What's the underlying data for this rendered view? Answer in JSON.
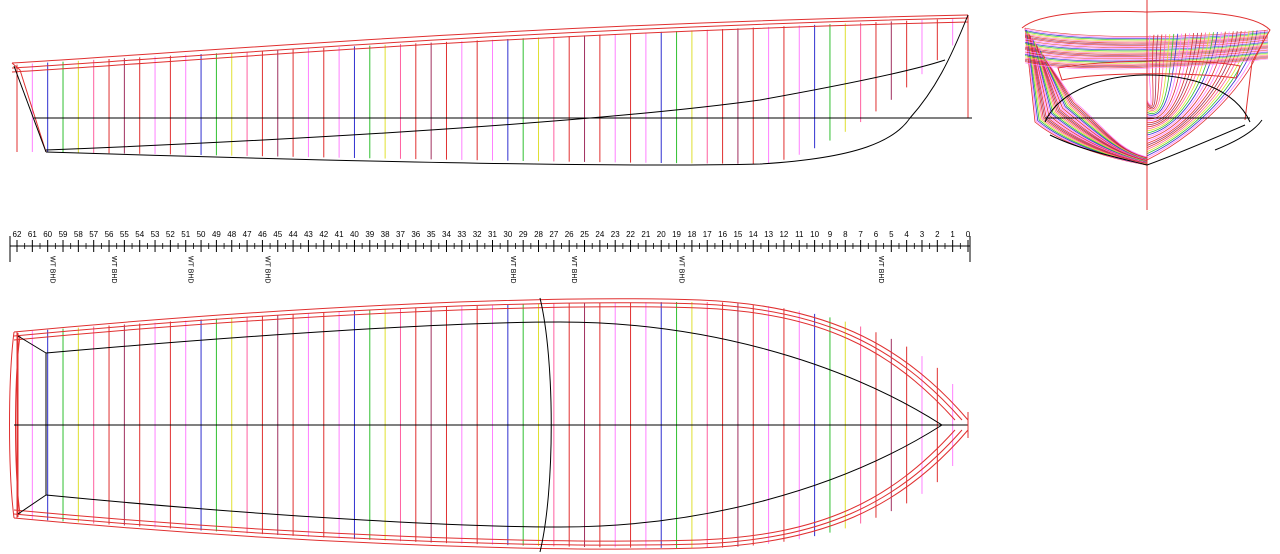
{
  "stations": {
    "labels": [
      "62",
      "61",
      "60",
      "59",
      "58",
      "57",
      "56",
      "55",
      "54",
      "53",
      "52",
      "51",
      "50",
      "49",
      "48",
      "47",
      "46",
      "45",
      "44",
      "43",
      "42",
      "41",
      "40",
      "39",
      "38",
      "37",
      "36",
      "35",
      "34",
      "33",
      "32",
      "31",
      "30",
      "29",
      "28",
      "27",
      "26",
      "25",
      "24",
      "23",
      "22",
      "21",
      "20",
      "19",
      "18",
      "17",
      "16",
      "15",
      "14",
      "13",
      "12",
      "11",
      "10",
      "9",
      "8",
      "7",
      "6",
      "5",
      "4",
      "3",
      "2",
      "1",
      "0"
    ]
  },
  "bulkheads": {
    "label": "WT BHD",
    "stations": [
      60,
      56,
      51,
      46,
      30,
      26,
      19,
      6
    ]
  },
  "colors": {
    "hull_outline": "#e03030",
    "station_cycle": [
      "#e03030",
      "#ff80ff",
      "#3030d0",
      "#30c030",
      "#e0e030",
      "#ff60a0",
      "#e03030",
      "#a03060",
      "#e03030",
      "#ff80ff"
    ]
  }
}
